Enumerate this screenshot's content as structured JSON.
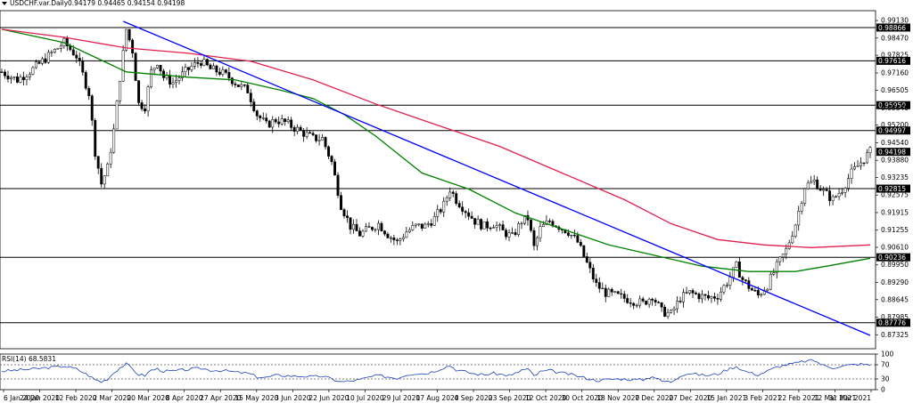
{
  "header": {
    "symbol": "USDCHF.var.Daily",
    "ohlc": "0.94179 0.94465 0.94154 0.94198"
  },
  "rsi_header": "RSI(14) 68.5831",
  "chart_data": [
    {
      "type": "candlestick",
      "title": "USDCHF.var.Daily",
      "ylim": [
        0.868,
        0.995
      ],
      "y_ticks": [
        "0.99130",
        "0.98470",
        "0.97825",
        "0.97160",
        "0.96505",
        "0.95840",
        "0.95200",
        "0.94540",
        "0.93880",
        "0.93235",
        "0.92575",
        "0.91915",
        "0.91255",
        "0.90610",
        "0.89950",
        "0.89290",
        "0.88645",
        "0.87985",
        "0.87325"
      ],
      "x_tick_labels": [
        "6 Jan 2020",
        "24 Jan 2020",
        "12 Feb 2020",
        "2 Mar 2020",
        "20 Mar 2020",
        "8 Apr 2020",
        "27 Apr 2020",
        "15 May 2020",
        "3 Jun 2020",
        "22 Jun 2020",
        "10 Jul 2020",
        "29 Jul 2020",
        "17 Aug 2020",
        "4 Sep 2020",
        "23 Sep 2020",
        "12 Oct 2020",
        "30 Oct 2020",
        "18 Nov 2020",
        "7 Dec 2020",
        "27 Dec 2020",
        "15 Jan 2021",
        "3 Feb 2021",
        "22 Feb 2021",
        "12 Mar 2021",
        "31 Mar 2021"
      ],
      "horizontal_levels": [
        "0.98866",
        "0.97616",
        "0.95950",
        "0.94997",
        "0.92815",
        "0.90236",
        "0.87776"
      ],
      "current_price": "0.94198",
      "price_path": [
        [
          0,
          0.972
        ],
        [
          5,
          0.969
        ],
        [
          10,
          0.973
        ],
        [
          15,
          0.978
        ],
        [
          20,
          0.983
        ],
        [
          24,
          0.978
        ],
        [
          28,
          0.964
        ],
        [
          30,
          0.942
        ],
        [
          32,
          0.93
        ],
        [
          34,
          0.936
        ],
        [
          36,
          0.95
        ],
        [
          38,
          0.97
        ],
        [
          40,
          0.988
        ],
        [
          42,
          0.98
        ],
        [
          44,
          0.96
        ],
        [
          46,
          0.959
        ],
        [
          48,
          0.972
        ],
        [
          50,
          0.976
        ],
        [
          52,
          0.97
        ],
        [
          55,
          0.968
        ],
        [
          58,
          0.971
        ],
        [
          61,
          0.974
        ],
        [
          64,
          0.976
        ],
        [
          67,
          0.973
        ],
        [
          70,
          0.972
        ],
        [
          73,
          0.97
        ],
        [
          76,
          0.967
        ],
        [
          79,
          0.965
        ],
        [
          82,
          0.956
        ],
        [
          85,
          0.952
        ],
        [
          88,
          0.954
        ],
        [
          91,
          0.953
        ],
        [
          94,
          0.951
        ],
        [
          97,
          0.949
        ],
        [
          100,
          0.947
        ],
        [
          103,
          0.947
        ],
        [
          106,
          0.938
        ],
        [
          109,
          0.922
        ],
        [
          112,
          0.914
        ],
        [
          115,
          0.911
        ],
        [
          118,
          0.913
        ],
        [
          121,
          0.915
        ],
        [
          124,
          0.911
        ],
        [
          127,
          0.908
        ],
        [
          130,
          0.912
        ],
        [
          133,
          0.914
        ],
        [
          136,
          0.914
        ],
        [
          139,
          0.917
        ],
        [
          142,
          0.922
        ],
        [
          144,
          0.928
        ],
        [
          146,
          0.924
        ],
        [
          149,
          0.92
        ],
        [
          152,
          0.916
        ],
        [
          155,
          0.914
        ],
        [
          158,
          0.915
        ],
        [
          161,
          0.912
        ],
        [
          164,
          0.91
        ],
        [
          167,
          0.916
        ],
        [
          169,
          0.917
        ],
        [
          171,
          0.906
        ],
        [
          173,
          0.913
        ],
        [
          176,
          0.916
        ],
        [
          179,
          0.914
        ],
        [
          182,
          0.912
        ],
        [
          185,
          0.908
        ],
        [
          188,
          0.9
        ],
        [
          191,
          0.892
        ],
        [
          194,
          0.889
        ],
        [
          197,
          0.888
        ],
        [
          200,
          0.887
        ],
        [
          203,
          0.886
        ],
        [
          206,
          0.885
        ],
        [
          209,
          0.888
        ],
        [
          212,
          0.882
        ],
        [
          215,
          0.881
        ],
        [
          218,
          0.887
        ],
        [
          221,
          0.889
        ],
        [
          224,
          0.888
        ],
        [
          227,
          0.887
        ],
        [
          230,
          0.888
        ],
        [
          233,
          0.893
        ],
        [
          236,
          0.899
        ],
        [
          238,
          0.894
        ],
        [
          241,
          0.89
        ],
        [
          243,
          0.888
        ],
        [
          246,
          0.892
        ],
        [
          249,
          0.899
        ],
        [
          252,
          0.905
        ],
        [
          255,
          0.915
        ],
        [
          258,
          0.929
        ],
        [
          261,
          0.931
        ],
        [
          264,
          0.927
        ],
        [
          267,
          0.924
        ],
        [
          270,
          0.928
        ],
        [
          273,
          0.934
        ],
        [
          276,
          0.938
        ],
        [
          279,
          0.942
        ]
      ],
      "series": [
        {
          "kind": "moving-average",
          "color": "#008000",
          "points": [
            [
              0,
              0.988
            ],
            [
              20,
              0.983
            ],
            [
              40,
              0.972
            ],
            [
              60,
              0.97
            ],
            [
              75,
              0.969
            ],
            [
              90,
              0.965
            ],
            [
              100,
              0.962
            ],
            [
              110,
              0.956
            ],
            [
              120,
              0.948
            ],
            [
              135,
              0.934
            ],
            [
              150,
              0.928
            ],
            [
              165,
              0.919
            ],
            [
              180,
              0.913
            ],
            [
              195,
              0.907
            ],
            [
              210,
              0.903
            ],
            [
              225,
              0.899
            ],
            [
              240,
              0.897
            ],
            [
              255,
              0.897
            ],
            [
              265,
              0.899
            ],
            [
              279,
              0.902
            ]
          ]
        },
        {
          "kind": "moving-average",
          "color": "#e0204e",
          "points": [
            [
              0,
              0.988
            ],
            [
              20,
              0.985
            ],
            [
              40,
              0.981
            ],
            [
              60,
              0.979
            ],
            [
              80,
              0.976
            ],
            [
              100,
              0.969
            ],
            [
              120,
              0.96
            ],
            [
              140,
              0.952
            ],
            [
              160,
              0.944
            ],
            [
              180,
              0.934
            ],
            [
              200,
              0.924
            ],
            [
              215,
              0.915
            ],
            [
              230,
              0.909
            ],
            [
              245,
              0.907
            ],
            [
              260,
              0.906
            ],
            [
              279,
              0.907
            ]
          ]
        },
        {
          "kind": "trendline",
          "color": "#0000ff",
          "points": [
            [
              39,
              0.991
            ],
            [
              279,
              0.873
            ]
          ]
        }
      ]
    },
    {
      "type": "line",
      "title": "RSI(14) 68.5831",
      "ylim": [
        0,
        100
      ],
      "y_ticks": [
        "100",
        "70",
        "30",
        "0"
      ],
      "levels": [
        70,
        30
      ],
      "color": "#1b3fb8",
      "values": [
        [
          0,
          52
        ],
        [
          5,
          55
        ],
        [
          10,
          58
        ],
        [
          15,
          62
        ],
        [
          20,
          66
        ],
        [
          24,
          58
        ],
        [
          28,
          40
        ],
        [
          30,
          28
        ],
        [
          32,
          22
        ],
        [
          34,
          30
        ],
        [
          36,
          48
        ],
        [
          38,
          62
        ],
        [
          40,
          72
        ],
        [
          42,
          58
        ],
        [
          44,
          42
        ],
        [
          46,
          40
        ],
        [
          48,
          55
        ],
        [
          50,
          58
        ],
        [
          52,
          52
        ],
        [
          55,
          52
        ],
        [
          58,
          55
        ],
        [
          61,
          58
        ],
        [
          64,
          60
        ],
        [
          67,
          55
        ],
        [
          70,
          54
        ],
        [
          73,
          52
        ],
        [
          76,
          48
        ],
        [
          79,
          46
        ],
        [
          82,
          36
        ],
        [
          85,
          34
        ],
        [
          88,
          40
        ],
        [
          91,
          40
        ],
        [
          94,
          38
        ],
        [
          97,
          38
        ],
        [
          100,
          36
        ],
        [
          103,
          38
        ],
        [
          106,
          30
        ],
        [
          109,
          22
        ],
        [
          112,
          24
        ],
        [
          115,
          28
        ],
        [
          118,
          35
        ],
        [
          121,
          40
        ],
        [
          124,
          36
        ],
        [
          127,
          32
        ],
        [
          130,
          42
        ],
        [
          133,
          46
        ],
        [
          136,
          45
        ],
        [
          139,
          52
        ],
        [
          142,
          62
        ],
        [
          144,
          68
        ],
        [
          146,
          56
        ],
        [
          149,
          50
        ],
        [
          152,
          44
        ],
        [
          155,
          42
        ],
        [
          158,
          46
        ],
        [
          161,
          42
        ],
        [
          164,
          40
        ],
        [
          167,
          55
        ],
        [
          169,
          58
        ],
        [
          171,
          38
        ],
        [
          173,
          50
        ],
        [
          176,
          54
        ],
        [
          179,
          48
        ],
        [
          182,
          44
        ],
        [
          185,
          38
        ],
        [
          188,
          32
        ],
        [
          191,
          26
        ],
        [
          194,
          28
        ],
        [
          197,
          30
        ],
        [
          200,
          30
        ],
        [
          203,
          28
        ],
        [
          206,
          28
        ],
        [
          209,
          38
        ],
        [
          212,
          24
        ],
        [
          215,
          22
        ],
        [
          218,
          40
        ],
        [
          221,
          46
        ],
        [
          224,
          42
        ],
        [
          227,
          40
        ],
        [
          230,
          44
        ],
        [
          233,
          56
        ],
        [
          236,
          66
        ],
        [
          238,
          54
        ],
        [
          241,
          46
        ],
        [
          243,
          42
        ],
        [
          246,
          52
        ],
        [
          249,
          64
        ],
        [
          252,
          70
        ],
        [
          255,
          74
        ],
        [
          258,
          80
        ],
        [
          261,
          82
        ],
        [
          264,
          68
        ],
        [
          267,
          62
        ],
        [
          270,
          66
        ],
        [
          273,
          70
        ],
        [
          276,
          72
        ],
        [
          279,
          68.58
        ]
      ]
    }
  ]
}
